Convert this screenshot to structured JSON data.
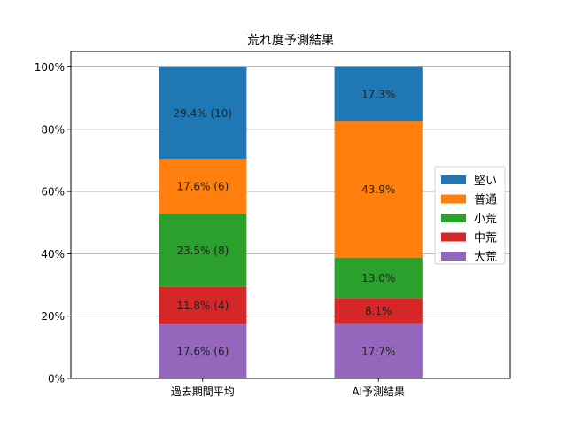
{
  "chart_data": {
    "type": "bar",
    "stacked": true,
    "title": "荒れ度予測結果",
    "xlabel": "",
    "ylabel": "",
    "categories": [
      "過去期間平均",
      "AI予測結果"
    ],
    "ylim": [
      0,
      105
    ],
    "yticks": [
      0,
      20,
      40,
      60,
      80,
      100
    ],
    "ytick_labels": [
      "0%",
      "20%",
      "40%",
      "60%",
      "80%",
      "100%"
    ],
    "grid": "horizontal",
    "legend_position": "right",
    "series": [
      {
        "name": "大荒",
        "color": "#9467bd",
        "values": [
          17.6,
          17.7
        ],
        "labels": [
          "17.6% (6)",
          "17.7%"
        ]
      },
      {
        "name": "中荒",
        "color": "#d62728",
        "values": [
          11.8,
          8.1
        ],
        "labels": [
          "11.8% (4)",
          "8.1%"
        ]
      },
      {
        "name": "小荒",
        "color": "#2ca02c",
        "values": [
          23.5,
          13.0
        ],
        "labels": [
          "23.5% (8)",
          "13.0%"
        ]
      },
      {
        "name": "普通",
        "color": "#ff7f0e",
        "values": [
          17.6,
          43.9
        ],
        "labels": [
          "17.6% (6)",
          "43.9%"
        ]
      },
      {
        "name": "堅い",
        "color": "#1f77b4",
        "values": [
          29.4,
          17.3
        ],
        "labels": [
          "29.4% (10)",
          "17.3%"
        ]
      }
    ]
  }
}
